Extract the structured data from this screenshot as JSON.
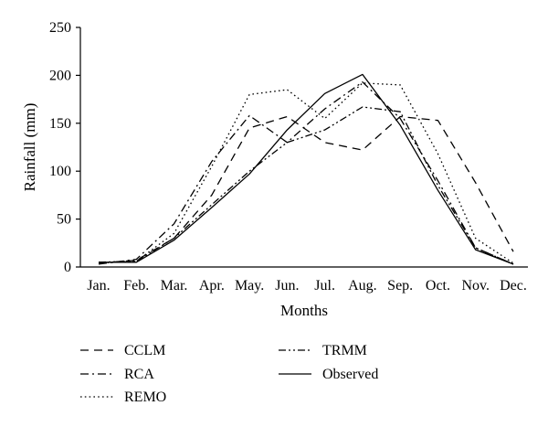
{
  "chart_data": {
    "type": "line",
    "xlabel": "Months",
    "ylabel": "Rainfall (mm)",
    "categories": [
      "Jan.",
      "Feb.",
      "Mar.",
      "Apr.",
      "May.",
      "Jun.",
      "Jul.",
      "Aug.",
      "Sep.",
      "Oct.",
      "Nov.",
      "Dec."
    ],
    "ylim": [
      0,
      250
    ],
    "yticks": [
      "0",
      "50",
      "100",
      "150",
      "200",
      "250"
    ],
    "grid": false,
    "legend_position": "bottom",
    "series": [
      {
        "name": "CCLM",
        "dash": "dashed",
        "values": [
          4,
          7,
          30,
          75,
          145,
          157,
          130,
          122,
          157,
          153,
          88,
          16
        ]
      },
      {
        "name": "RCA",
        "dash": "dashdot",
        "values": [
          3,
          8,
          45,
          110,
          158,
          130,
          165,
          193,
          155,
          90,
          20,
          3
        ]
      },
      {
        "name": "REMO",
        "dash": "dotted",
        "values": [
          4,
          6,
          35,
          105,
          180,
          185,
          155,
          192,
          190,
          118,
          30,
          4
        ]
      },
      {
        "name": "TRMM",
        "dash": "dashdotdot",
        "values": [
          5,
          6,
          30,
          65,
          100,
          130,
          143,
          167,
          162,
          85,
          20,
          3
        ]
      },
      {
        "name": "Observed",
        "dash": "solid",
        "values": [
          5,
          5,
          28,
          62,
          97,
          143,
          181,
          201,
          148,
          80,
          18,
          3
        ]
      }
    ]
  }
}
